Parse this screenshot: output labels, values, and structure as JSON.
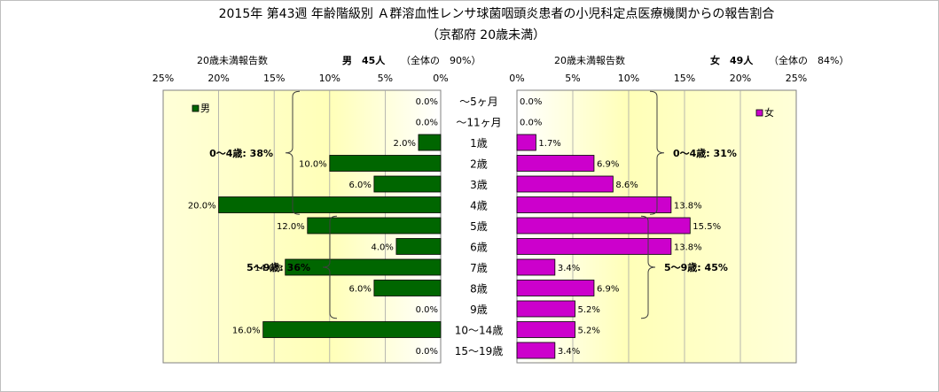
{
  "chart_data": {
    "type": "bar",
    "title": "2015年 第43週 年齢階級別 Ａ群溶血性レンサ球菌咽頭炎患者の小児科定点医療機関からの報告割合",
    "subtitle": "（京都府 20歳未満）",
    "categories": [
      "～5ヶ月",
      "～11ヶ月",
      "1歳",
      "2歳",
      "3歳",
      "4歳",
      "5歳",
      "6歳",
      "7歳",
      "8歳",
      "9歳",
      "10～14歳",
      "15～19歳"
    ],
    "ticks": [
      "25%",
      "20%",
      "15%",
      "10%",
      "5%",
      "0%"
    ],
    "ticks_right": [
      "0%",
      "5%",
      "10%",
      "15%",
      "20%",
      "25%"
    ],
    "xlim": [
      0,
      25
    ],
    "series": [
      {
        "name": "男",
        "color": "#006600",
        "axis_label": "20歳未満報告数",
        "count_label": "男　45人",
        "share_label": "（全体の　90%）",
        "values": [
          0.0,
          0.0,
          2.0,
          10.0,
          6.0,
          20.0,
          12.0,
          4.0,
          14.0,
          6.0,
          0.0,
          16.0,
          0.0
        ],
        "labels": [
          "0.0%",
          "0.0%",
          "2.0%",
          "10.0%",
          "6.0%",
          "20.0%",
          "12.0%",
          "4.0%",
          "14.0%",
          "6.0%",
          "0.0%",
          "16.0%",
          "0.0%"
        ],
        "groups": [
          {
            "label": "0～4歳: 38%",
            "from": 0,
            "to": 5
          },
          {
            "label": "5～9歳: 36%",
            "from": 6,
            "to": 10
          }
        ]
      },
      {
        "name": "女",
        "color": "#cc00cc",
        "axis_label": "20歳未満報告数",
        "count_label": "女　49人",
        "share_label": "（全体の　84%）",
        "values": [
          0.0,
          0.0,
          1.7,
          6.9,
          8.6,
          13.8,
          15.5,
          13.8,
          3.4,
          6.9,
          5.2,
          5.2,
          3.4
        ],
        "labels": [
          "0.0%",
          "0.0%",
          "1.7%",
          "6.9%",
          "8.6%",
          "13.8%",
          "15.5%",
          "13.8%",
          "3.4%",
          "6.9%",
          "5.2%",
          "5.2%",
          "3.4%"
        ],
        "groups": [
          {
            "label": "0～4歳: 31%",
            "from": 0,
            "to": 5
          },
          {
            "label": "5～9歳: 45%",
            "from": 6,
            "to": 10
          }
        ]
      }
    ]
  }
}
